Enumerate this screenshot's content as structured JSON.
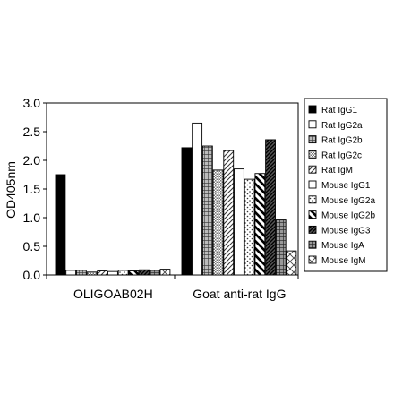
{
  "chart_data": {
    "type": "bar",
    "title": "",
    "xlabel": "",
    "ylabel": "OD405nm",
    "ylim": [
      0,
      3.0
    ],
    "yticks": [
      "0.0",
      "0.5",
      "1.0",
      "1.5",
      "2.0",
      "2.5",
      "3.0"
    ],
    "grid": false,
    "legend_position": "right",
    "categories": [
      "OLIGOAB02H",
      "Goat anti-rat IgG"
    ],
    "series": [
      {
        "name": "Rat IgG1",
        "values": [
          1.75,
          2.22
        ],
        "pattern": "solid-black"
      },
      {
        "name": "Rat IgG2a",
        "values": [
          0.08,
          2.65
        ],
        "pattern": "white"
      },
      {
        "name": "Rat IgG2b",
        "values": [
          0.08,
          2.25
        ],
        "pattern": "grid-dark"
      },
      {
        "name": "Rat IgG2c",
        "values": [
          0.05,
          1.83
        ],
        "pattern": "checker-fine"
      },
      {
        "name": "Rat IgM",
        "values": [
          0.07,
          2.17
        ],
        "pattern": "diagonal-up"
      },
      {
        "name": "Mouse IgG1",
        "values": [
          0.06,
          1.85
        ],
        "pattern": "white"
      },
      {
        "name": "Mouse IgG2a",
        "values": [
          0.08,
          1.67
        ],
        "pattern": "dots"
      },
      {
        "name": "Mouse IgG2b",
        "values": [
          0.07,
          1.77
        ],
        "pattern": "diagonal-down-thick"
      },
      {
        "name": "Mouse IgG3",
        "values": [
          0.09,
          2.36
        ],
        "pattern": "diagonal-dense"
      },
      {
        "name": "Mouse IgA",
        "values": [
          0.08,
          0.96
        ],
        "pattern": "grid-dark2"
      },
      {
        "name": "Mouse IgM",
        "values": [
          0.1,
          0.42
        ],
        "pattern": "crosshatch"
      }
    ]
  },
  "colors": {
    "axis": "#000000",
    "bar_stroke": "#000000",
    "background": "#ffffff"
  }
}
